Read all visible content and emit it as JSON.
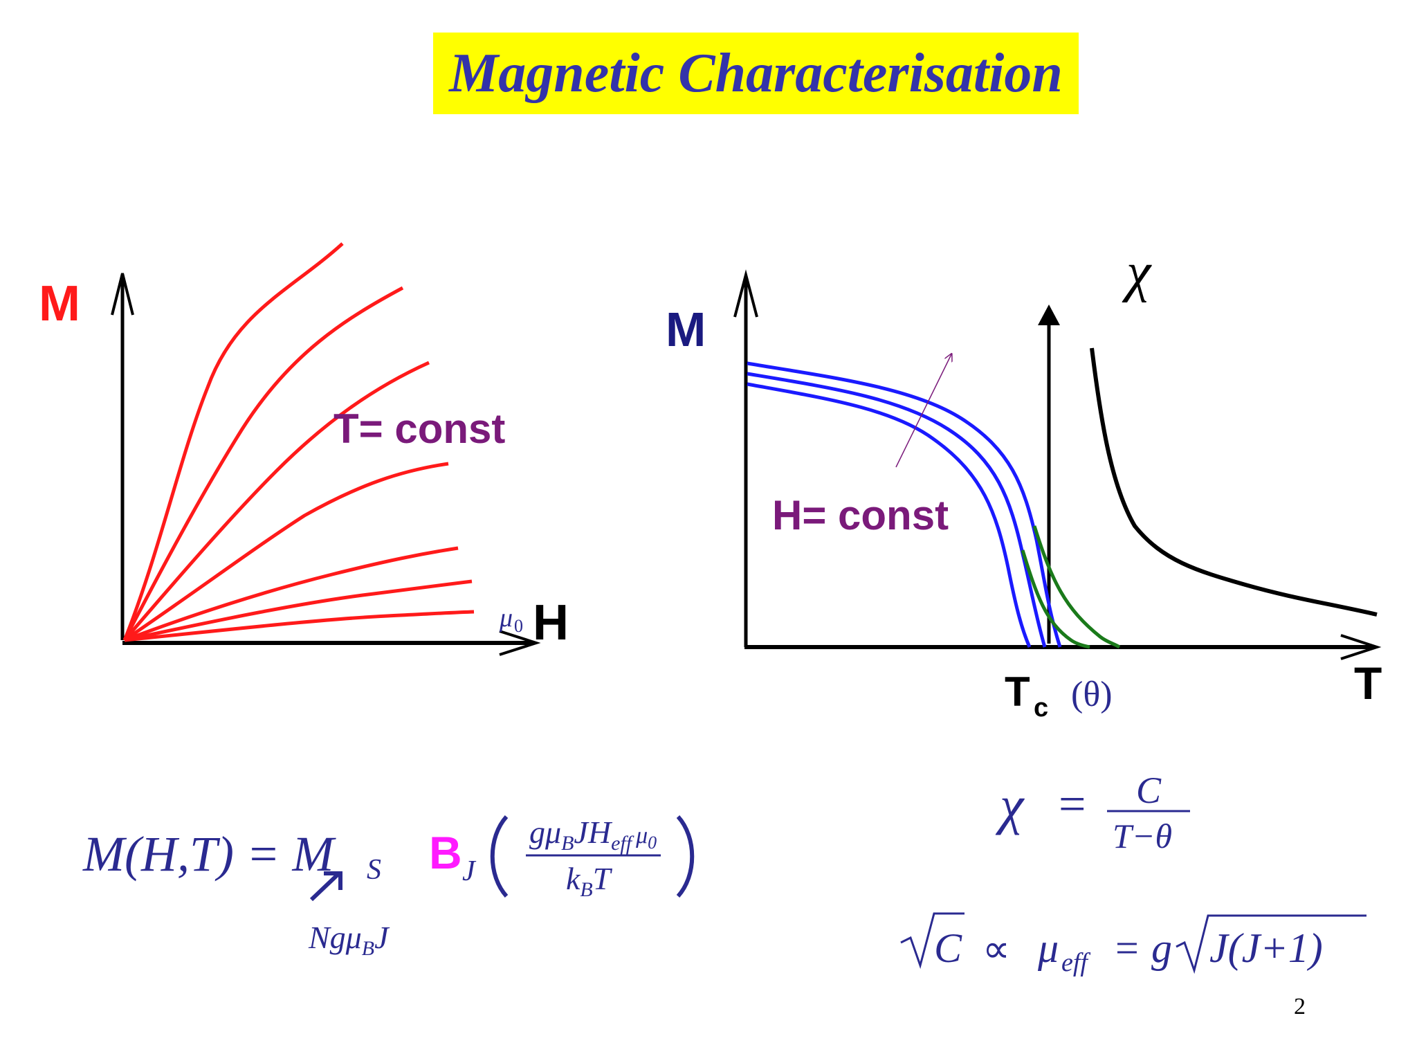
{
  "title": "Magnetic Characterisation",
  "page_number": "2",
  "colors": {
    "title_bg": "#ffff00",
    "title_text": "#3333aa",
    "red": "#ff1a1a",
    "blue": "#1a1aff",
    "green": "#1a7a1a",
    "purple": "#7a1a7a",
    "navy": "#1a1a80",
    "formula": "#2a2a90",
    "magenta": "#ff1aff"
  },
  "left_plot": {
    "y_label": "M",
    "x_label": "H",
    "x_prefix_symbol": "μ",
    "x_prefix_sub": "0",
    "annotation": "T= const"
  },
  "right_plot": {
    "y_label": "M",
    "x_label": "T",
    "chi_label": "χ",
    "annotation": "H= const",
    "tc_label": "T",
    "tc_sub": "c",
    "tc_suffix": "(θ)"
  },
  "formula_left": {
    "lhs": "M(H,T) = M",
    "lhs_sub": "S",
    "magenta_B": "B",
    "magenta_sub": "J",
    "numerator": "gμ",
    "numerator_sub_B": "B",
    "numerator_rest": "JH",
    "numerator_sub_eff": "eff",
    "numerator_tail": "μ",
    "numerator_tail_sub": "0",
    "denominator": "k",
    "denominator_sub": "B",
    "denominator_rest": "T",
    "under_text": "Ngμ",
    "under_sub": "B",
    "under_rest": "J"
  },
  "formula_right": {
    "chi": "χ",
    "equals": "=",
    "numerator": "C",
    "denominator": "T−θ",
    "sqrt_arg": "C",
    "proportional": "∝",
    "mu": "μ",
    "mu_sub": "eff",
    "equals2": "=",
    "g": "g",
    "sqrt_arg2": "J(J+1)"
  }
}
